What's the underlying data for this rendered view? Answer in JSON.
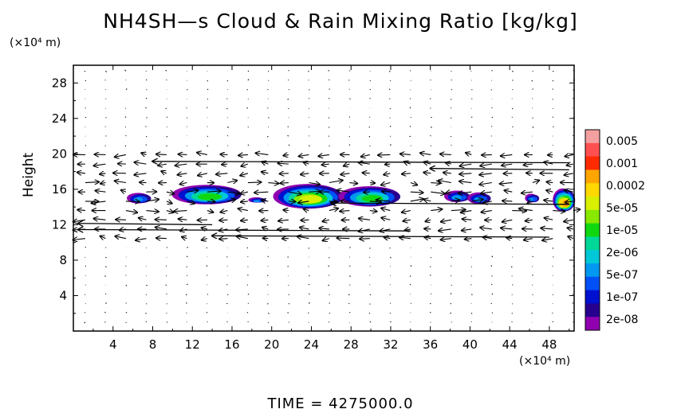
{
  "chart_data": {
    "type": "heatmap",
    "title": "NH4SH—s Cloud & Rain Mixing Ratio [kg/kg]",
    "xlabel": "",
    "ylabel": "Height",
    "x_unit": "(×10⁴ m)",
    "y_unit": "(×10⁴ m)",
    "xlim": [
      0,
      50.5
    ],
    "ylim": [
      0,
      30
    ],
    "xticks": [
      4,
      8,
      12,
      16,
      20,
      24,
      28,
      32,
      36,
      40,
      44,
      48
    ],
    "yticks": [
      4,
      8,
      12,
      16,
      20,
      24,
      28
    ],
    "footer": "TIME  =  4275000.0",
    "colorbar": {
      "labels": [
        "0.005",
        "0.001",
        "0.0002",
        "5e-05",
        "1e-05",
        "2e-06",
        "5e-07",
        "1e-07",
        "2e-08"
      ],
      "colors": [
        "#f4a0a0",
        "#ff4f50",
        "#ff2a00",
        "#ffa500",
        "#ffd800",
        "#d8f000",
        "#88e800",
        "#10d810",
        "#00d898",
        "#00c8d8",
        "#0098f0",
        "#0050f8",
        "#0010d0",
        "#280090",
        "#9000b0"
      ]
    },
    "cloud_blobs": [
      {
        "x": 6.7,
        "y": 15.0,
        "w": 2.3,
        "h": 1.2,
        "level": "5e-07"
      },
      {
        "x": 13.6,
        "y": 15.4,
        "w": 7.0,
        "h": 2.2,
        "level": "1e-05"
      },
      {
        "x": 18.6,
        "y": 14.8,
        "w": 1.6,
        "h": 0.6,
        "level": "5e-07"
      },
      {
        "x": 23.8,
        "y": 15.2,
        "w": 7.0,
        "h": 2.8,
        "level": "5e-05"
      },
      {
        "x": 30.0,
        "y": 15.2,
        "w": 6.2,
        "h": 2.3,
        "level": "1e-05"
      },
      {
        "x": 38.8,
        "y": 15.2,
        "w": 2.5,
        "h": 1.3,
        "level": "5e-07"
      },
      {
        "x": 41.0,
        "y": 15.0,
        "w": 2.2,
        "h": 1.3,
        "level": "5e-07"
      },
      {
        "x": 46.3,
        "y": 15.0,
        "w": 1.2,
        "h": 1.0,
        "level": "5e-07"
      },
      {
        "x": 49.5,
        "y": 14.8,
        "w": 2.0,
        "h": 2.6,
        "level": "0.0002"
      }
    ]
  }
}
